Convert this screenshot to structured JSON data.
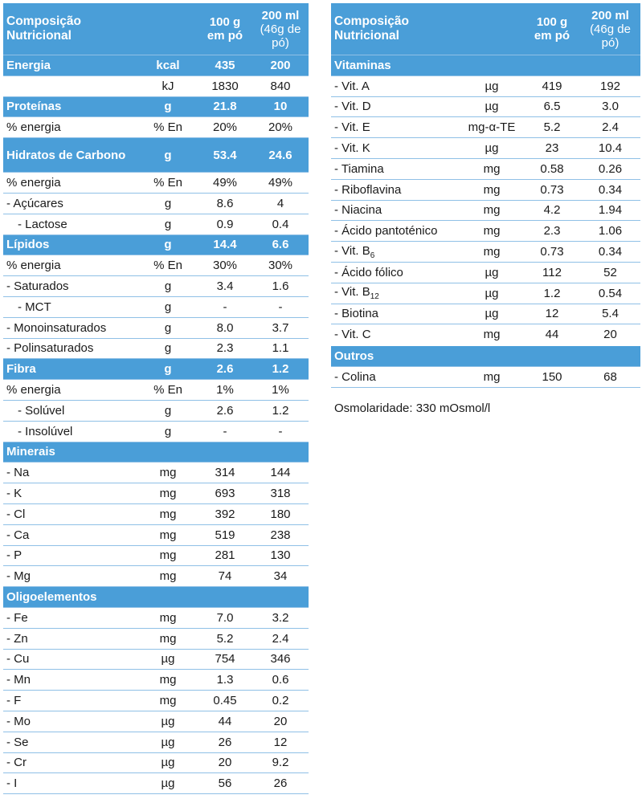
{
  "headers": {
    "label": "Composição Nutricional",
    "col1_line1": "100 g",
    "col1_line2": "em pó",
    "col2_line1": "200 ml",
    "col2_line2": "(46g de pó)"
  },
  "left_table": [
    {
      "label": "Energia",
      "unit": "kcal",
      "v1": "435",
      "v2": "200",
      "section": true
    },
    {
      "label": "",
      "unit": "kJ",
      "v1": "1830",
      "v2": "840"
    },
    {
      "label": "Proteínas",
      "unit": "g",
      "v1": "21.8",
      "v2": "10",
      "section": true
    },
    {
      "label": "% energia",
      "unit": "% En",
      "v1": "20%",
      "v2": "20%"
    },
    {
      "label": "Hidratos de Carbono",
      "unit": "g",
      "v1": "53.4",
      "v2": "24.6",
      "section": true,
      "tall": true
    },
    {
      "label": "% energia",
      "unit": "% En",
      "v1": "49%",
      "v2": "49%"
    },
    {
      "label": "- Açúcares",
      "unit": "g",
      "v1": "8.6",
      "v2": "4"
    },
    {
      "label": "- Lactose",
      "unit": "g",
      "v1": "0.9",
      "v2": "0.4",
      "indent": true
    },
    {
      "label": "Lípidos",
      "unit": "g",
      "v1": "14.4",
      "v2": "6.6",
      "section": true
    },
    {
      "label": "% energia",
      "unit": "% En",
      "v1": "30%",
      "v2": "30%"
    },
    {
      "label": "- Saturados",
      "unit": "g",
      "v1": "3.4",
      "v2": "1.6"
    },
    {
      "label": "- MCT",
      "unit": "g",
      "v1": "-",
      "v2": "-",
      "indent": true
    },
    {
      "label": "- Monoinsaturados",
      "unit": "g",
      "v1": "8.0",
      "v2": "3.7"
    },
    {
      "label": "- Polinsaturados",
      "unit": "g",
      "v1": "2.3",
      "v2": "1.1"
    },
    {
      "label": "Fibra",
      "unit": "g",
      "v1": "2.6",
      "v2": "1.2",
      "section": true
    },
    {
      "label": "% energia",
      "unit": "% En",
      "v1": "1%",
      "v2": "1%"
    },
    {
      "label": "- Solúvel",
      "unit": "g",
      "v1": "2.6",
      "v2": "1.2",
      "indent": true
    },
    {
      "label": "- Insolúvel",
      "unit": "g",
      "v1": "-",
      "v2": "-",
      "indent": true
    },
    {
      "label": "Minerais",
      "unit": "",
      "v1": "",
      "v2": "",
      "section": true
    },
    {
      "label": "- Na",
      "unit": "mg",
      "v1": "314",
      "v2": "144"
    },
    {
      "label": "- K",
      "unit": "mg",
      "v1": "693",
      "v2": "318"
    },
    {
      "label": "- Cl",
      "unit": "mg",
      "v1": "392",
      "v2": "180"
    },
    {
      "label": "- Ca",
      "unit": "mg",
      "v1": "519",
      "v2": "238"
    },
    {
      "label": "- P",
      "unit": "mg",
      "v1": "281",
      "v2": "130"
    },
    {
      "label": "- Mg",
      "unit": "mg",
      "v1": "74",
      "v2": "34"
    },
    {
      "label": "Oligoelementos",
      "unit": "",
      "v1": "",
      "v2": "",
      "section": true
    },
    {
      "label": "- Fe",
      "unit": "mg",
      "v1": "7.0",
      "v2": "3.2"
    },
    {
      "label": "- Zn",
      "unit": "mg",
      "v1": "5.2",
      "v2": "2.4"
    },
    {
      "label": "- Cu",
      "unit": "µg",
      "v1": "754",
      "v2": "346"
    },
    {
      "label": "- Mn",
      "unit": "mg",
      "v1": "1.3",
      "v2": "0.6"
    },
    {
      "label": "- F",
      "unit": "mg",
      "v1": "0.45",
      "v2": "0.2"
    },
    {
      "label": "- Mo",
      "unit": "µg",
      "v1": "44",
      "v2": "20"
    },
    {
      "label": "- Se",
      "unit": "µg",
      "v1": "26",
      "v2": "12"
    },
    {
      "label": "- Cr",
      "unit": "µg",
      "v1": "20",
      "v2": "9.2"
    },
    {
      "label": "- I",
      "unit": "µg",
      "v1": "56",
      "v2": "26"
    }
  ],
  "right_table": [
    {
      "label": "Vitaminas",
      "unit": "",
      "v1": "",
      "v2": "",
      "section": true
    },
    {
      "label": "- Vit. A",
      "unit": "µg",
      "v1": "419",
      "v2": "192"
    },
    {
      "label": "- Vit. D",
      "unit": "µg",
      "v1": "6.5",
      "v2": "3.0"
    },
    {
      "label": "- Vit. E",
      "unit": "mg-α-TE",
      "v1": "5.2",
      "v2": "2.4"
    },
    {
      "label": "- Vit. K",
      "unit": "µg",
      "v1": "23",
      "v2": "10.4"
    },
    {
      "label": "- Tiamina",
      "unit": "mg",
      "v1": "0.58",
      "v2": "0.26"
    },
    {
      "label": "- Riboflavina",
      "unit": "mg",
      "v1": "0.73",
      "v2": "0.34"
    },
    {
      "label": "- Niacina",
      "unit": "mg",
      "v1": "4.2",
      "v2": "1.94"
    },
    {
      "label": "- Ácido pantoténico",
      "unit": "mg",
      "v1": "2.3",
      "v2": "1.06"
    },
    {
      "label": "- Vit. B",
      "sub": "6",
      "unit": "mg",
      "v1": "0.73",
      "v2": "0.34"
    },
    {
      "label": "- Ácido fólico",
      "unit": "µg",
      "v1": "112",
      "v2": "52"
    },
    {
      "label": "- Vit. B",
      "sub": "12",
      "unit": "µg",
      "v1": "1.2",
      "v2": "0.54"
    },
    {
      "label": "- Biotina",
      "unit": "µg",
      "v1": "12",
      "v2": "5.4"
    },
    {
      "label": "- Vit. C",
      "unit": "mg",
      "v1": "44",
      "v2": "20"
    },
    {
      "label": "Outros",
      "unit": "",
      "v1": "",
      "v2": "",
      "section": true,
      "top_sep": true
    },
    {
      "label": "- Colina",
      "unit": "mg",
      "v1": "150",
      "v2": "68"
    }
  ],
  "osmolarity": "Osmolaridade: 330 mOsmol/l"
}
